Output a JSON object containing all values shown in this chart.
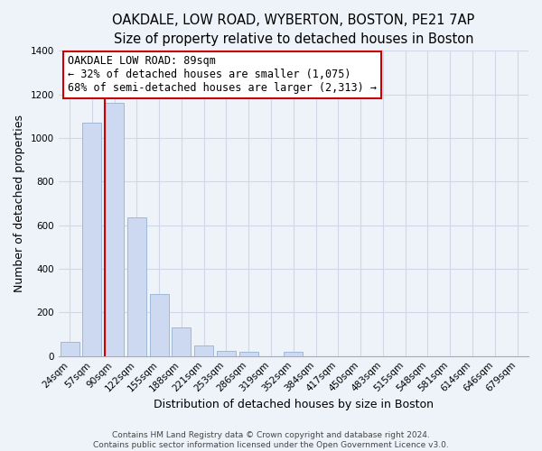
{
  "title": "OAKDALE, LOW ROAD, WYBERTON, BOSTON, PE21 7AP",
  "subtitle": "Size of property relative to detached houses in Boston",
  "xlabel": "Distribution of detached houses by size in Boston",
  "ylabel": "Number of detached properties",
  "categories": [
    "24sqm",
    "57sqm",
    "90sqm",
    "122sqm",
    "155sqm",
    "188sqm",
    "221sqm",
    "253sqm",
    "286sqm",
    "319sqm",
    "352sqm",
    "384sqm",
    "417sqm",
    "450sqm",
    "483sqm",
    "515sqm",
    "548sqm",
    "581sqm",
    "614sqm",
    "646sqm",
    "679sqm"
  ],
  "values": [
    65,
    1070,
    1160,
    635,
    285,
    130,
    48,
    22,
    18,
    0,
    18,
    0,
    0,
    0,
    0,
    0,
    0,
    0,
    0,
    0,
    0
  ],
  "bar_color": "#ccd9f0",
  "bar_edge_color": "#a0b8d8",
  "marker_bar_index": 2,
  "marker_color": "#cc0000",
  "annotation_title": "OAKDALE LOW ROAD: 89sqm",
  "annotation_line1": "← 32% of detached houses are smaller (1,075)",
  "annotation_line2": "68% of semi-detached houses are larger (2,313) →",
  "annotation_box_color": "#ffffff",
  "annotation_box_edge_color": "#cc0000",
  "ylim": [
    0,
    1400
  ],
  "yticks": [
    0,
    200,
    400,
    600,
    800,
    1000,
    1200,
    1400
  ],
  "footer1": "Contains HM Land Registry data © Crown copyright and database right 2024.",
  "footer2": "Contains public sector information licensed under the Open Government Licence v3.0.",
  "background_color": "#eef2f9",
  "plot_bg_color": "#eef2f9",
  "grid_color": "#d0d8e8",
  "title_fontsize": 10.5,
  "axis_label_fontsize": 9,
  "tick_fontsize": 7.5,
  "footer_fontsize": 6.5
}
